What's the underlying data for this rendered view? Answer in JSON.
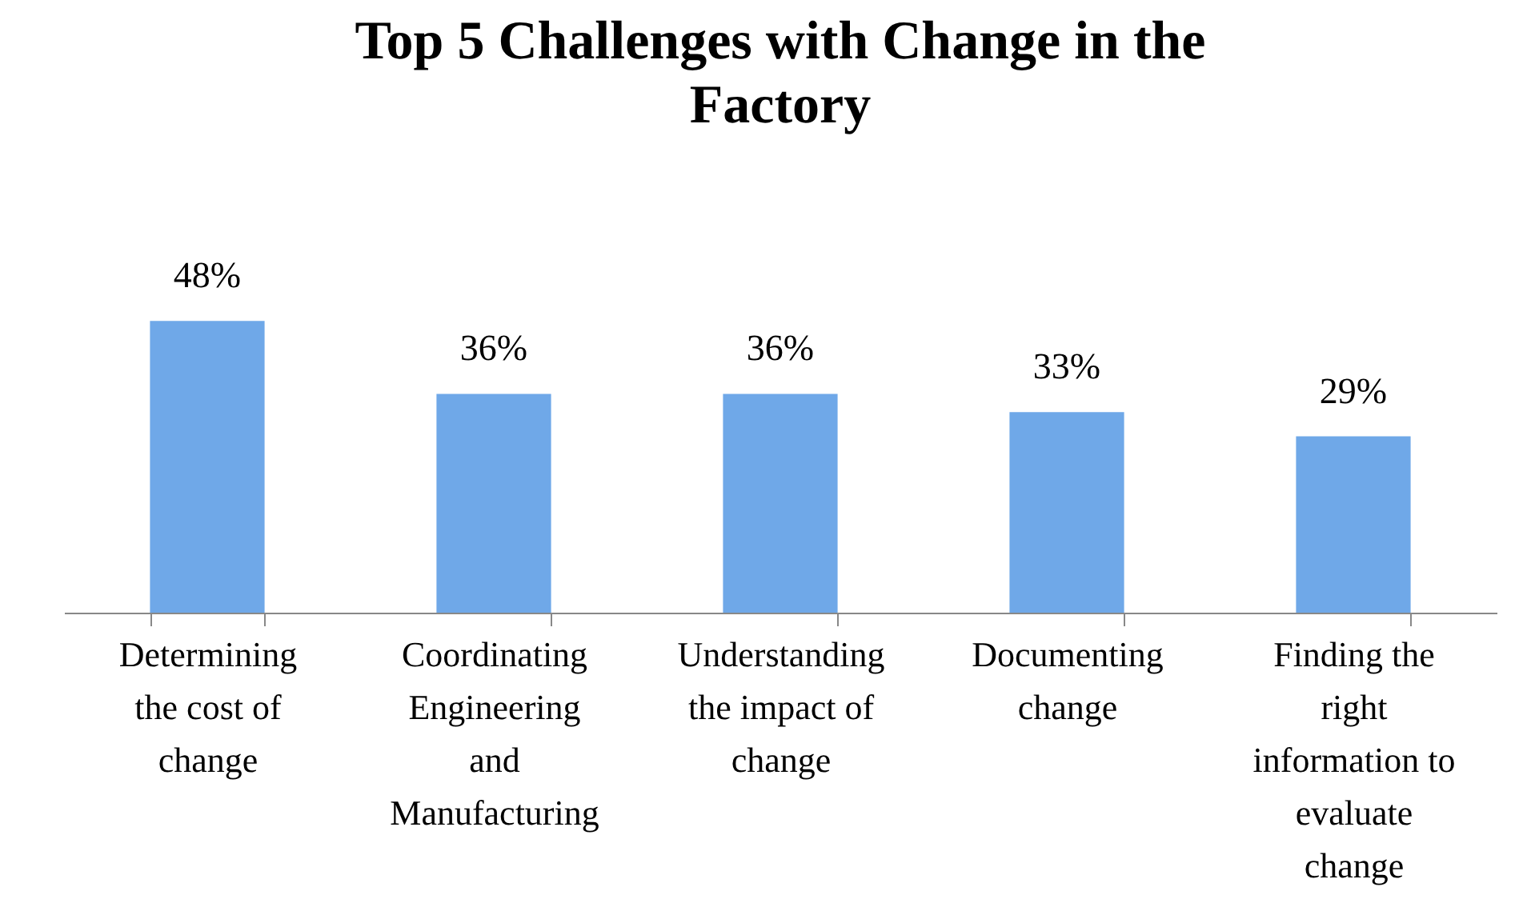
{
  "chart_data": {
    "type": "bar",
    "title": "Top 5 Challenges with Change in the Factory",
    "categories": [
      "Determining the cost of change",
      "Coordinating Engineering and Manufacturing",
      "Understanding the impact of change",
      "Documenting change",
      "Finding the right information to evaluate change"
    ],
    "values": [
      48,
      36,
      36,
      33,
      29
    ],
    "value_labels": [
      "48%",
      "36%",
      "36%",
      "33%",
      "29%"
    ],
    "color": "#6fa8e8",
    "grid": false
  }
}
